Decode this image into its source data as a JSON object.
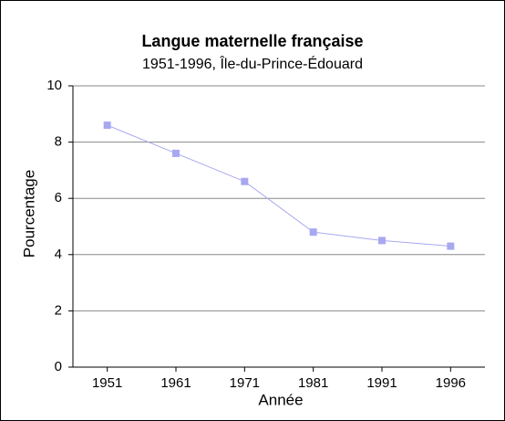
{
  "chart_data": {
    "type": "line",
    "title": "Langue maternelle française",
    "subtitle": "1951-1996, Île-du-Prince-Édouard",
    "x_label": "Année",
    "y_label": "Pourcentage",
    "categories": [
      "1951",
      "1961",
      "1971",
      "1981",
      "1991",
      "1996"
    ],
    "series": [
      {
        "color": "#a8a8f0",
        "values": [
          8.6,
          7.6,
          6.6,
          4.8,
          4.5,
          4.3
        ]
      }
    ],
    "ylim": [
      0,
      10
    ],
    "yticks": [
      0,
      2,
      4,
      6,
      8,
      10
    ],
    "grid": true
  }
}
